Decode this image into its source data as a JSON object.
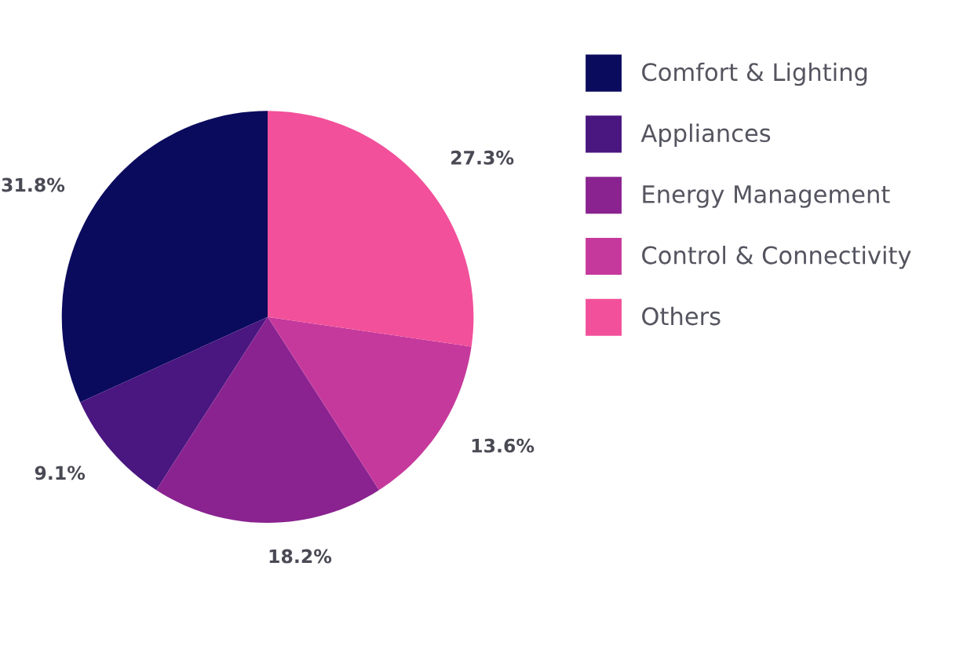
{
  "chart_data": {
    "type": "pie",
    "categories": [
      "Comfort & Lighting",
      "Appliances",
      "Energy Management",
      "Control & Connectivity",
      "Others"
    ],
    "values": [
      31.8,
      9.1,
      18.2,
      13.6,
      27.3
    ],
    "colors": [
      "#0b0b5e",
      "#4a1680",
      "#8a2390",
      "#c6399c",
      "#f2509a"
    ],
    "value_labels": [
      "31.8%",
      "9.1%",
      "18.2%",
      "13.6%",
      "27.3%"
    ],
    "legend": "right"
  }
}
